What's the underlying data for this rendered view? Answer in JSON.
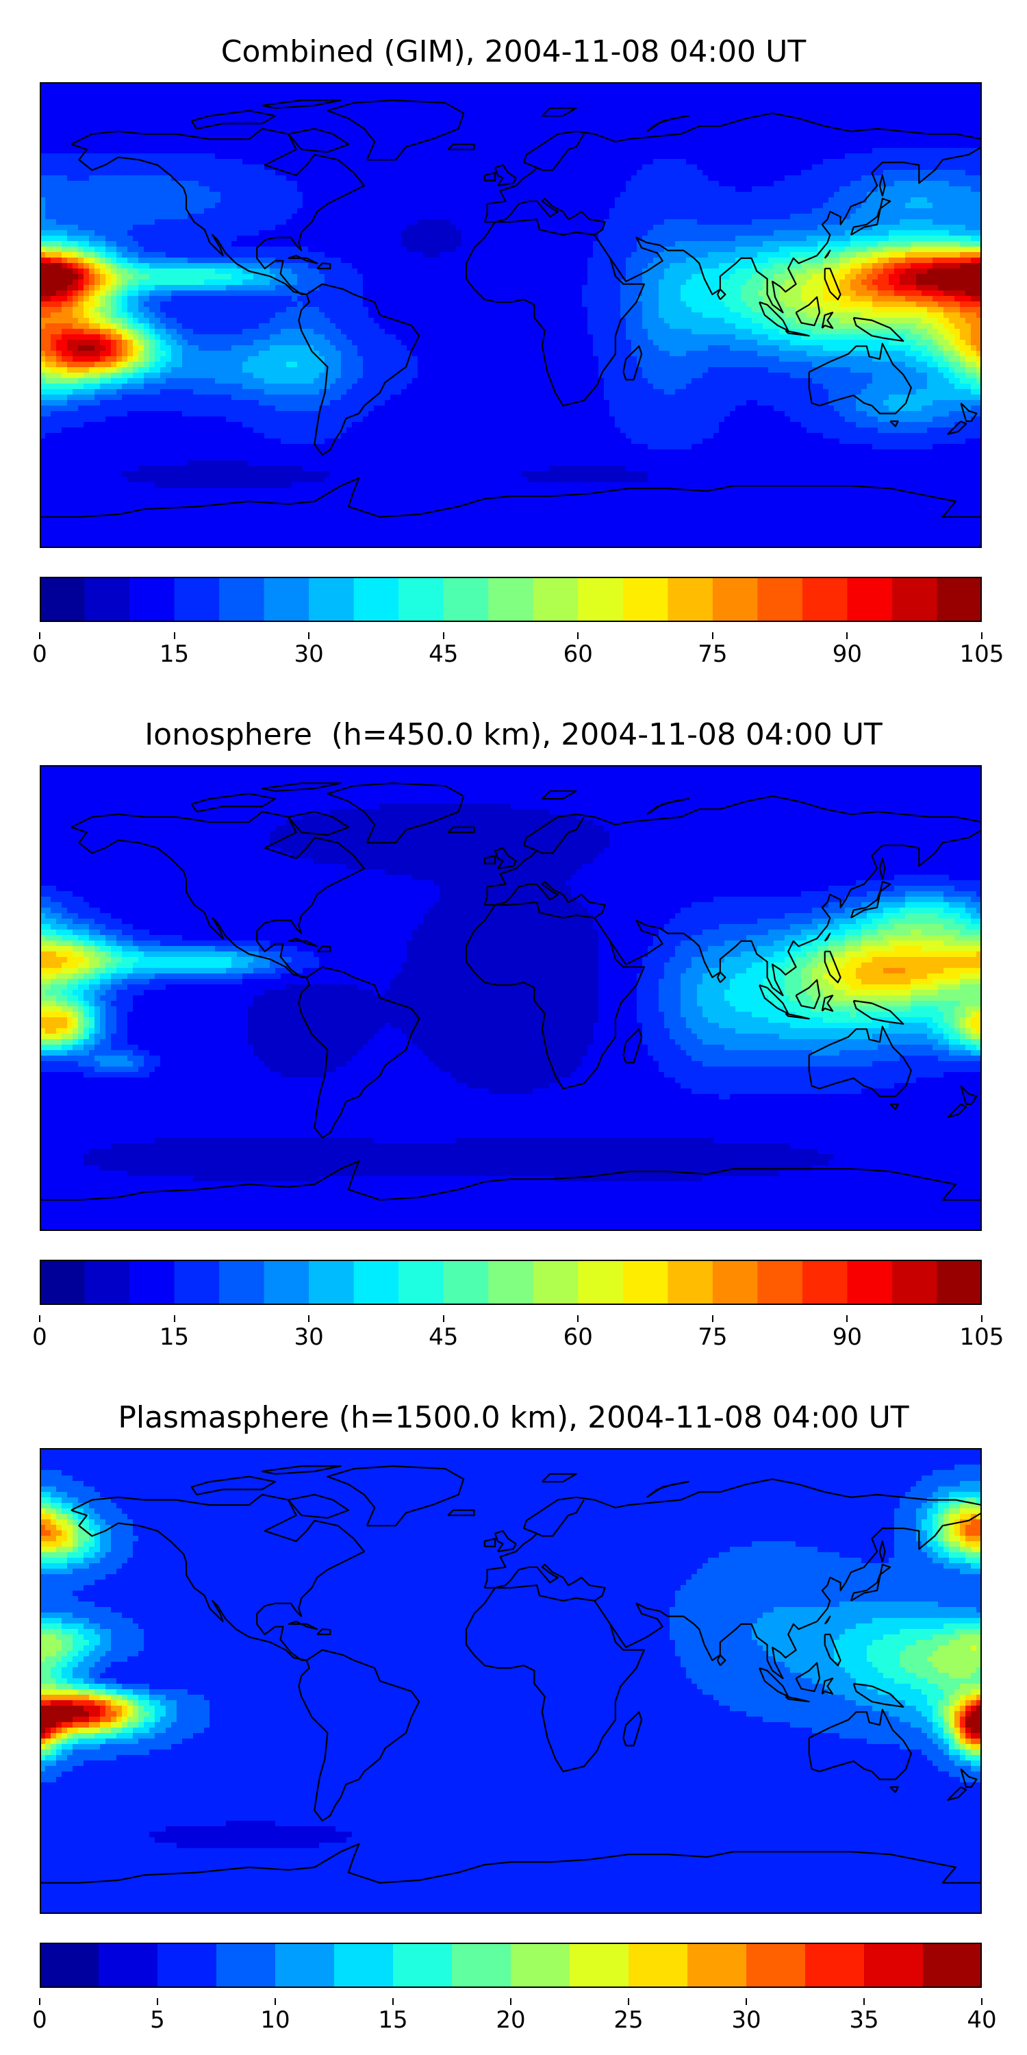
{
  "panels": [
    {
      "title": "Combined (GIM), 2004-11-08 04:00 UT",
      "colorbar": {
        "min": 0,
        "max": 105,
        "levels": 21,
        "ticks": [
          "0",
          "15",
          "30",
          "45",
          "60",
          "75",
          "90",
          "105"
        ]
      },
      "field": {
        "background": 14,
        "blobs": [
          {
            "lon": -170,
            "lat": 12,
            "rlon": 22,
            "rlat": 14,
            "amp": 58
          },
          {
            "lon": -175,
            "lat": 18,
            "rlon": 14,
            "rlat": 6,
            "amp": 12
          },
          {
            "lon": -158,
            "lat": -13,
            "rlon": 22,
            "rlat": 11,
            "amp": 75
          },
          {
            "lon": -175,
            "lat": -25,
            "rlon": 18,
            "rlat": 10,
            "amp": 18
          },
          {
            "lon": -120,
            "lat": 15,
            "rlon": 35,
            "rlat": 6,
            "amp": 30
          },
          {
            "lon": -100,
            "lat": -20,
            "rlon": 40,
            "rlat": 12,
            "amp": 14
          },
          {
            "lon": -80,
            "lat": -15,
            "rlon": 18,
            "rlat": 25,
            "amp": 10
          },
          {
            "lon": -140,
            "lat": 45,
            "rlon": 40,
            "rlat": 12,
            "amp": 10
          },
          {
            "lon": 160,
            "lat": 16,
            "rlon": 30,
            "rlat": 12,
            "amp": 58
          },
          {
            "lon": 135,
            "lat": 5,
            "rlon": 40,
            "rlat": 22,
            "amp": 38
          },
          {
            "lon": 175,
            "lat": -8,
            "rlon": 20,
            "rlat": 14,
            "amp": 30
          },
          {
            "lon": 95,
            "lat": 10,
            "rlon": 35,
            "rlat": 20,
            "amp": 22
          },
          {
            "lon": 150,
            "lat": -35,
            "rlon": 25,
            "rlat": 10,
            "amp": 16
          },
          {
            "lon": 60,
            "lat": 0,
            "rlon": 18,
            "rlat": 40,
            "amp": 10
          },
          {
            "lon": 155,
            "lat": 45,
            "rlon": 30,
            "rlat": 12,
            "amp": 14
          },
          {
            "lon": -110,
            "lat": -62,
            "rlon": 60,
            "rlat": 8,
            "amp": -6
          },
          {
            "lon": 40,
            "lat": -62,
            "rlon": 70,
            "rlat": 8,
            "amp": -5
          },
          {
            "lon": -30,
            "lat": 30,
            "rlon": 25,
            "rlat": 15,
            "amp": -5
          }
        ]
      }
    },
    {
      "title": "Ionosphere  (h=450.0 km), 2004-11-08 04:00 UT",
      "colorbar": {
        "min": 0,
        "max": 105,
        "levels": 21,
        "ticks": [
          "0",
          "15",
          "30",
          "45",
          "60",
          "75",
          "90",
          "105"
        ]
      },
      "field": {
        "background": 12,
        "blobs": [
          {
            "lon": -170,
            "lat": 15,
            "rlon": 22,
            "rlat": 10,
            "amp": 38
          },
          {
            "lon": -172,
            "lat": -10,
            "rlon": 15,
            "rlat": 10,
            "amp": 48
          },
          {
            "lon": -120,
            "lat": 14,
            "rlon": 35,
            "rlat": 6,
            "amp": 28
          },
          {
            "lon": -150,
            "lat": -25,
            "rlon": 12,
            "rlat": 5,
            "amp": 16
          },
          {
            "lon": 150,
            "lat": 12,
            "rlon": 38,
            "rlat": 16,
            "amp": 48
          },
          {
            "lon": 120,
            "lat": 0,
            "rlon": 45,
            "rlat": 25,
            "amp": 26
          },
          {
            "lon": 160,
            "lat": 32,
            "rlon": 25,
            "rlat": 10,
            "amp": 22
          },
          {
            "lon": 175,
            "lat": -12,
            "rlon": 15,
            "rlat": 10,
            "amp": 18
          },
          {
            "lon": 75,
            "lat": 0,
            "rlon": 22,
            "rlat": 30,
            "amp": 10
          },
          {
            "lon": 0,
            "lat": 5,
            "rlon": 40,
            "rlat": 40,
            "amp": -6
          },
          {
            "lon": -80,
            "lat": -10,
            "rlon": 25,
            "rlat": 25,
            "amp": -4
          },
          {
            "lon": -100,
            "lat": -62,
            "rlon": 60,
            "rlat": 8,
            "amp": -6
          },
          {
            "lon": 50,
            "lat": -62,
            "rlon": 70,
            "rlat": 8,
            "amp": -6
          },
          {
            "lon": -30,
            "lat": 62,
            "rlon": 60,
            "rlat": 12,
            "amp": -6
          }
        ]
      }
    },
    {
      "title": "Plasmasphere (h=1500.0 km), 2004-11-08 04:00 UT",
      "colorbar": {
        "min": 0,
        "max": 40,
        "levels": 16,
        "ticks": [
          "0",
          "5",
          "10",
          "15",
          "20",
          "25",
          "30",
          "35",
          "40"
        ]
      },
      "field": {
        "background": 7,
        "blobs": [
          {
            "lon": -165,
            "lat": -12,
            "rlon": 25,
            "rlat": 9,
            "amp": 31
          },
          {
            "lon": -175,
            "lat": 16,
            "rlon": 20,
            "rlat": 8,
            "amp": 10
          },
          {
            "lon": -170,
            "lat": 55,
            "rlon": 15,
            "rlat": 10,
            "amp": 12
          },
          {
            "lon": -150,
            "lat": 0,
            "rlon": 20,
            "rlat": 6,
            "amp": -4
          },
          {
            "lon": 150,
            "lat": 10,
            "rlon": 30,
            "rlat": 20,
            "amp": 9
          },
          {
            "lon": 175,
            "lat": 60,
            "rlon": 15,
            "rlat": 12,
            "amp": 20
          },
          {
            "lon": 178,
            "lat": -20,
            "rlon": 10,
            "rlat": 10,
            "amp": 22
          },
          {
            "lon": 175,
            "lat": 5,
            "rlon": 20,
            "rlat": 10,
            "amp": 8
          },
          {
            "lon": 100,
            "lat": 20,
            "rlon": 30,
            "rlat": 25,
            "amp": 3
          },
          {
            "lon": 0,
            "lat": -15,
            "rlon": 40,
            "rlat": 30,
            "amp": -2
          },
          {
            "lon": -100,
            "lat": -60,
            "rlon": 60,
            "rlat": 8,
            "amp": -3
          }
        ]
      }
    }
  ]
}
